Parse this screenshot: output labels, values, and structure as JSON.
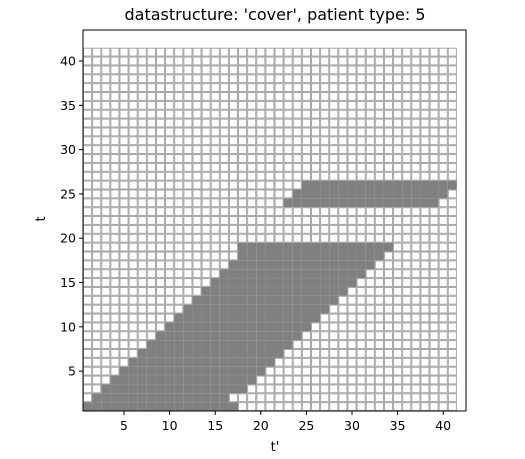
{
  "chart_data": {
    "type": "heatmap",
    "title": "datastructure: 'cover', patient type: 5",
    "xlabel": "t'",
    "ylabel": "t",
    "x_range": [
      1,
      41
    ],
    "y_range": [
      1,
      41
    ],
    "xlim": [
      0.5,
      42.5
    ],
    "ylim": [
      0.5,
      43.5
    ],
    "xticks": [
      5,
      10,
      15,
      20,
      25,
      30,
      35,
      40
    ],
    "yticks": [
      5,
      10,
      15,
      20,
      25,
      30,
      35,
      40
    ],
    "covered_color": "#808080",
    "empty_color": "#ffffff",
    "grid_line_color": "#a6a6a6",
    "covered_rows": [
      {
        "t": 1,
        "from": 1,
        "to": 17
      },
      {
        "t": 2,
        "from": 2,
        "to": 16
      },
      {
        "t": 3,
        "from": 3,
        "to": 18
      },
      {
        "t": 4,
        "from": 4,
        "to": 19
      },
      {
        "t": 5,
        "from": 5,
        "to": 20
      },
      {
        "t": 6,
        "from": 6,
        "to": 21
      },
      {
        "t": 7,
        "from": 7,
        "to": 22
      },
      {
        "t": 8,
        "from": 8,
        "to": 23
      },
      {
        "t": 9,
        "from": 9,
        "to": 24
      },
      {
        "t": 10,
        "from": 10,
        "to": 25
      },
      {
        "t": 11,
        "from": 11,
        "to": 26
      },
      {
        "t": 12,
        "from": 12,
        "to": 27
      },
      {
        "t": 13,
        "from": 13,
        "to": 28
      },
      {
        "t": 14,
        "from": 14,
        "to": 29
      },
      {
        "t": 15,
        "from": 15,
        "to": 30
      },
      {
        "t": 16,
        "from": 16,
        "to": 31
      },
      {
        "t": 17,
        "from": 17,
        "to": 32
      },
      {
        "t": 18,
        "from": 18,
        "to": 33
      },
      {
        "t": 19,
        "from": 18,
        "to": 34
      },
      {
        "t": 24,
        "from": 23,
        "to": 39
      },
      {
        "t": 25,
        "from": 24,
        "to": 40
      },
      {
        "t": 26,
        "from": 25,
        "to": 41
      }
    ]
  }
}
